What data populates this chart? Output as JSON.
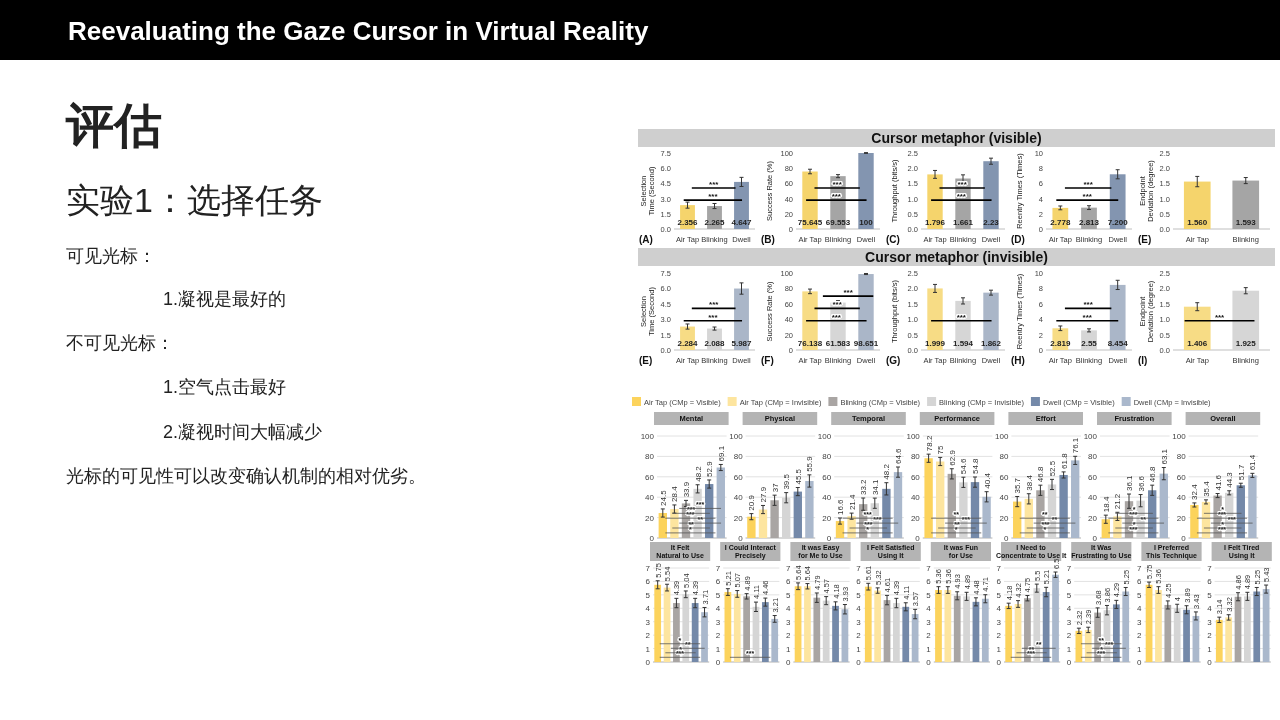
{
  "chart_data": [
    {
      "type": "other",
      "title": "Reevaluating the Gaze Cursor in Virtual Reality",
      "annotations": [
        "评估",
        "实验1：选择任务",
        "可见光标：",
        "1.凝视是最好的",
        "不可见光标：",
        "1.空气点击最好",
        "2.凝视时间大幅减少",
        "光标的可见性可以改变确认机制的相对优劣。"
      ]
    },
    {
      "type": "other",
      "title": "Cursor metaphor (visible)"
    },
    {
      "type": "bar",
      "subtitle": "(A)",
      "ylabel": "Selection Time (Second)",
      "categories": [
        "Air Tap",
        "Blinking",
        "Dwell"
      ],
      "values": [
        2.356,
        2.265,
        4.647
      ],
      "colors": [
        "#f5d46c",
        "#a5a5a5",
        "#8395b0"
      ],
      "errors": [
        0.3,
        0.25,
        0.45
      ],
      "value_labels": [
        "2.356",
        "2.265",
        "4.647"
      ],
      "ylim": [
        0,
        7.5
      ],
      "yticks": [
        {
          "value": 0,
          "label": "0.0"
        },
        1.5,
        {
          "value": 3,
          "label": "3.0"
        },
        4.5,
        {
          "value": 6,
          "label": "6.0"
        },
        7.5
      ],
      "annotations": [
        "***",
        "***"
      ]
    },
    {
      "type": "bar",
      "subtitle": "(B)",
      "ylabel": "Success Rate (%)",
      "categories": [
        "Air Tap",
        "Blinking",
        "Dwell"
      ],
      "values": [
        75.645,
        69.553,
        100
      ],
      "colors": [
        "#f5d46c",
        "#a5a5a5",
        "#8395b0"
      ],
      "errors": [
        3,
        2,
        0.5
      ],
      "value_labels": [
        "75.645",
        "69.553",
        "100"
      ],
      "ylim": [
        0,
        100
      ],
      "yticks": [
        0,
        20,
        40,
        60,
        80,
        100
      ],
      "annotations": [
        "***",
        "***"
      ]
    },
    {
      "type": "bar",
      "subtitle": "(C)",
      "ylabel": "Throughput (bits/s)",
      "categories": [
        "Air Tap",
        "Blinking",
        "Dwell"
      ],
      "values": [
        1.796,
        1.661,
        2.23
      ],
      "colors": [
        "#f5d46c",
        "#a5a5a5",
        "#8395b0"
      ],
      "errors": [
        0.13,
        0.12,
        0.1
      ],
      "value_labels": [
        "1.796",
        "1.661",
        "2.23"
      ],
      "ylim": [
        0,
        2.5
      ],
      "yticks": [
        {
          "value": 0,
          "label": "0.0"
        },
        0.5,
        {
          "value": 1,
          "label": "1.0"
        },
        1.5,
        {
          "value": 2,
          "label": "2.0"
        },
        2.5
      ],
      "annotations": [
        "***",
        "***"
      ]
    },
    {
      "type": "bar",
      "subtitle": "(D)",
      "ylabel": "Reentry Times (Times)",
      "categories": [
        "Air Tap",
        "Blinking",
        "Dwell"
      ],
      "values": [
        2.778,
        2.813,
        7.2
      ],
      "colors": [
        "#f5d46c",
        "#a5a5a5",
        "#8395b0"
      ],
      "errors": [
        0.25,
        0.25,
        0.6
      ],
      "value_labels": [
        "2.778",
        "2.813",
        "7.200"
      ],
      "ylim": [
        0,
        10
      ],
      "yticks": [
        0,
        2,
        4,
        6,
        8,
        10
      ],
      "annotations": [
        "***",
        "***"
      ]
    },
    {
      "type": "bar",
      "subtitle": "(E)",
      "ylabel": "Endpoint Deviation (degree)",
      "categories": [
        "Air Tap",
        "Blinking"
      ],
      "values": [
        1.56,
        1.593
      ],
      "colors": [
        "#f5d46c",
        "#a5a5a5"
      ],
      "errors": [
        0.17,
        0.1
      ],
      "value_labels": [
        "1.560",
        "1.593"
      ],
      "ylim": [
        0,
        2.5
      ],
      "yticks": [
        {
          "value": 0,
          "label": "0.0"
        },
        0.5,
        {
          "value": 1,
          "label": "1.0"
        },
        1.5,
        {
          "value": 2,
          "label": "2.0"
        },
        2.5
      ]
    },
    {
      "type": "other",
      "title": "Cursor metaphor (invisible)"
    },
    {
      "type": "bar",
      "subtitle": "(E)",
      "ylabel": "Selection Time (Second)",
      "categories": [
        "Air Tap",
        "Blinking",
        "Dwell"
      ],
      "values": [
        2.284,
        2.088,
        5.987
      ],
      "colors": [
        "#f7dc85",
        "#d6d6d6",
        "#aab6c8"
      ],
      "errors": [
        0.25,
        0.15,
        0.55
      ],
      "value_labels": [
        "2.284",
        "2.088",
        "5.987"
      ],
      "ylim": [
        0,
        7.5
      ],
      "yticks": [
        {
          "value": 0,
          "label": "0.0"
        },
        1.5,
        {
          "value": 3,
          "label": "3.0"
        },
        4.5,
        {
          "value": 6,
          "label": "6.0"
        },
        7.5
      ],
      "annotations": [
        "***",
        "***"
      ]
    },
    {
      "type": "bar",
      "subtitle": "(F)",
      "ylabel": "Success Rate (%)",
      "categories": [
        "Air Tap",
        "Blinking",
        "Dwell"
      ],
      "values": [
        76.138,
        61.583,
        98.651
      ],
      "colors": [
        "#f7dc85",
        "#d6d6d6",
        "#aab6c8"
      ],
      "errors": [
        3,
        2.5,
        0.7
      ],
      "value_labels": [
        "76.138",
        "61.583",
        "98.651"
      ],
      "ylim": [
        0,
        100
      ],
      "yticks": [
        0,
        20,
        40,
        60,
        80,
        100
      ],
      "annotations": [
        "***",
        "***",
        "***"
      ]
    },
    {
      "type": "bar",
      "subtitle": "(G)",
      "ylabel": "Throughput (bits/s)",
      "categories": [
        "Air Tap",
        "Blinking",
        "Dwell"
      ],
      "values": [
        1.999,
        1.594,
        1.862
      ],
      "colors": [
        "#f7dc85",
        "#d6d6d6",
        "#aab6c8"
      ],
      "errors": [
        0.13,
        0.1,
        0.08
      ],
      "value_labels": [
        "1.999",
        "1.594",
        "1.862"
      ],
      "ylim": [
        0,
        2.5
      ],
      "yticks": [
        {
          "value": 0,
          "label": "0.0"
        },
        0.5,
        {
          "value": 1,
          "label": "1.0"
        },
        1.5,
        {
          "value": 2,
          "label": "2.0"
        },
        2.5
      ],
      "annotations": [
        "***"
      ]
    },
    {
      "type": "bar",
      "subtitle": "(H)",
      "ylabel": "Reentry Times (Times)",
      "categories": [
        "Air Tap",
        "Blinking",
        "Dwell"
      ],
      "values": [
        2.819,
        2.55,
        8.454
      ],
      "colors": [
        "#f7dc85",
        "#d6d6d6",
        "#aab6c8"
      ],
      "errors": [
        0.3,
        0.2,
        0.6
      ],
      "value_labels": [
        "2.819",
        "2.55",
        "8.454"
      ],
      "ylim": [
        0,
        10
      ],
      "yticks": [
        0,
        2,
        4,
        6,
        8,
        10
      ],
      "annotations": [
        "***",
        "***"
      ]
    },
    {
      "type": "bar",
      "subtitle": "(I)",
      "ylabel": "Endpoint Deviation (degree)",
      "categories": [
        "Air Tap",
        "Blinking"
      ],
      "values": [
        1.406,
        1.925
      ],
      "colors": [
        "#f7dc85",
        "#d6d6d6"
      ],
      "errors": [
        0.13,
        0.1
      ],
      "value_labels": [
        "1.406",
        "1.925"
      ],
      "ylim": [
        0,
        2.5
      ],
      "yticks": [
        {
          "value": 0,
          "label": "0.0"
        },
        0.5,
        {
          "value": 1,
          "label": "1.0"
        },
        1.5,
        {
          "value": 2,
          "label": "2.0"
        },
        2.5
      ],
      "annotations": [
        "***"
      ]
    },
    {
      "type": "bar",
      "title": "Mental",
      "categories": [
        null
      ],
      "legend": "top",
      "grid": "y",
      "data_labels": true,
      "ylim": [
        0,
        100
      ],
      "yticks": [
        0,
        20,
        40,
        60,
        80,
        100
      ],
      "annotations": [
        "*",
        "**",
        "**",
        "***",
        "***",
        "***"
      ],
      "series": [
        {
          "name": "Air Tap (CMp = Visible)",
          "color": "#fcd35c",
          "values": [
            24.5
          ],
          "errors": [
            4
          ]
        },
        {
          "name": "Air Tap (CMp = Invisible)",
          "color": "#fde59f",
          "values": [
            28.4
          ],
          "errors": [
            4
          ]
        },
        {
          "name": "Blinking (CMp = Visible)",
          "color": "#a9a5a3",
          "values": [
            33.9
          ],
          "errors": [
            3
          ]
        },
        {
          "name": "Blinking (CMp = Invisible)",
          "color": "#d5d5d5",
          "values": [
            48.2
          ],
          "errors": [
            4
          ]
        },
        {
          "name": "Dwell (CMp = Visible)",
          "color": "#7489a9",
          "values": [
            52.9
          ],
          "errors": [
            4
          ]
        },
        {
          "name": "Dwell (CMp = Invisible)",
          "color": "#aab8cc",
          "values": [
            69.1
          ],
          "errors": [
            3
          ]
        }
      ]
    },
    {
      "type": "bar",
      "title": "Physical",
      "categories": [
        null
      ],
      "grid": "y",
      "data_labels": true,
      "ylim": [
        0,
        100
      ],
      "yticks": [
        0,
        20,
        40,
        60,
        80,
        100
      ],
      "series": [
        {
          "color": "#fcd35c",
          "values": [
            20.9
          ],
          "errors": [
            3
          ]
        },
        {
          "color": "#fde59f",
          "values": [
            27.9
          ],
          "errors": [
            4
          ]
        },
        {
          "color": "#a9a5a3",
          "values": [
            37
          ],
          "errors": [
            5
          ]
        },
        {
          "color": "#d5d5d5",
          "values": [
            39.5
          ],
          "errors": [
            5
          ]
        },
        {
          "color": "#7489a9",
          "values": [
            45.5
          ],
          "errors": [
            4
          ]
        },
        {
          "color": "#aab8cc",
          "values": [
            55.9
          ],
          "errors": [
            6
          ]
        }
      ]
    },
    {
      "type": "bar",
      "title": "Temporal",
      "categories": [
        null
      ],
      "grid": "y",
      "data_labels": true,
      "ylim": [
        0,
        100
      ],
      "yticks": [
        0,
        20,
        40,
        60,
        80,
        100
      ],
      "annotations": [
        "*",
        "***",
        "***",
        "***"
      ],
      "series": [
        {
          "color": "#fcd35c",
          "values": [
            16.6
          ],
          "errors": [
            3
          ]
        },
        {
          "color": "#fde59f",
          "values": [
            21.4
          ],
          "errors": [
            3
          ]
        },
        {
          "color": "#a9a5a3",
          "values": [
            33.2
          ],
          "errors": [
            6
          ]
        },
        {
          "color": "#d5d5d5",
          "values": [
            34.1
          ],
          "errors": [
            5
          ]
        },
        {
          "color": "#7489a9",
          "values": [
            48.2
          ],
          "errors": [
            6
          ]
        },
        {
          "color": "#aab8cc",
          "values": [
            64.6
          ],
          "errors": [
            5
          ]
        }
      ]
    },
    {
      "type": "bar",
      "title": "Performance",
      "categories": [
        null
      ],
      "grid": "y",
      "data_labels": true,
      "ylim": [
        0,
        100
      ],
      "yticks": [
        0,
        20,
        40,
        60,
        80,
        100
      ],
      "annotations": [
        "*",
        "**",
        "***",
        "**"
      ],
      "series": [
        {
          "color": "#fcd35c",
          "values": [
            78.2
          ],
          "errors": [
            4
          ]
        },
        {
          "color": "#fde59f",
          "values": [
            75
          ],
          "errors": [
            4
          ]
        },
        {
          "color": "#a9a5a3",
          "values": [
            62.9
          ],
          "errors": [
            5
          ]
        },
        {
          "color": "#d5d5d5",
          "values": [
            54.6
          ],
          "errors": [
            5
          ]
        },
        {
          "color": "#7489a9",
          "values": [
            54.8
          ],
          "errors": [
            5
          ]
        },
        {
          "color": "#aab8cc",
          "values": [
            40.4
          ],
          "errors": [
            5
          ]
        }
      ]
    },
    {
      "type": "bar",
      "title": "Effort",
      "categories": [
        null
      ],
      "grid": "y",
      "data_labels": true,
      "ylim": [
        0,
        100
      ],
      "yticks": [
        0,
        20,
        40,
        60,
        80,
        100
      ],
      "annotations": [
        "*",
        "***",
        "**",
        "**"
      ],
      "series": [
        {
          "color": "#fcd35c",
          "values": [
            35.7
          ],
          "errors": [
            5
          ]
        },
        {
          "color": "#fde59f",
          "values": [
            38.4
          ],
          "errors": [
            5
          ]
        },
        {
          "color": "#a9a5a3",
          "values": [
            46.8
          ],
          "errors": [
            5
          ]
        },
        {
          "color": "#d5d5d5",
          "values": [
            52.5
          ],
          "errors": [
            5
          ]
        },
        {
          "color": "#7489a9",
          "values": [
            61.8
          ],
          "errors": [
            3
          ]
        },
        {
          "color": "#aab8cc",
          "values": [
            76.1
          ],
          "errors": [
            4
          ]
        }
      ]
    },
    {
      "type": "bar",
      "title": "Frustration",
      "categories": [
        null
      ],
      "grid": "y",
      "data_labels": true,
      "ylim": [
        0,
        100
      ],
      "yticks": [
        0,
        20,
        40,
        60,
        80,
        100
      ],
      "annotations": [
        "***",
        "*",
        "**",
        "***",
        "*"
      ],
      "series": [
        {
          "color": "#fcd35c",
          "values": [
            18.4
          ],
          "errors": [
            4
          ]
        },
        {
          "color": "#fde59f",
          "values": [
            21.2
          ],
          "errors": [
            4
          ]
        },
        {
          "color": "#a9a5a3",
          "values": [
            36.1
          ],
          "errors": [
            7
          ]
        },
        {
          "color": "#d5d5d5",
          "values": [
            36.6
          ],
          "errors": [
            6
          ]
        },
        {
          "color": "#7489a9",
          "values": [
            46.8
          ],
          "errors": [
            5
          ]
        },
        {
          "color": "#aab8cc",
          "values": [
            63.1
          ],
          "errors": [
            6
          ]
        }
      ]
    },
    {
      "type": "bar",
      "title": "Overall",
      "categories": [
        null
      ],
      "grid": "y",
      "data_labels": true,
      "ylim": [
        0,
        100
      ],
      "yticks": [
        0,
        20,
        40,
        60,
        80,
        100
      ],
      "annotations": [
        "***",
        "*",
        "***",
        "***",
        "*"
      ],
      "series": [
        {
          "color": "#fcd35c",
          "values": [
            32.4
          ],
          "errors": [
            2
          ]
        },
        {
          "color": "#fde59f",
          "values": [
            35.4
          ],
          "errors": [
            2
          ]
        },
        {
          "color": "#a9a5a3",
          "values": [
            41.6
          ],
          "errors": [
            2
          ]
        },
        {
          "color": "#d5d5d5",
          "values": [
            44.3
          ],
          "errors": [
            2
          ]
        },
        {
          "color": "#7489a9",
          "values": [
            51.7
          ],
          "errors": [
            2
          ]
        },
        {
          "color": "#aab8cc",
          "values": [
            61.4
          ],
          "errors": [
            2
          ]
        }
      ]
    },
    {
      "type": "bar",
      "title": "It Felt Natural to Use",
      "categories": [
        null
      ],
      "grid": "y",
      "data_labels": true,
      "ylim": [
        0,
        7
      ],
      "yticks": [
        0,
        1,
        2,
        3,
        4,
        5,
        6,
        7
      ],
      "annotations": [
        "***",
        "*",
        "**",
        "*"
      ],
      "series": [
        {
          "color": "#fcd35c",
          "values": [
            5.75
          ],
          "errors": [
            0.3
          ]
        },
        {
          "color": "#fde59f",
          "values": [
            5.54
          ],
          "errors": [
            0.25
          ]
        },
        {
          "color": "#a9a5a3",
          "values": [
            4.39
          ],
          "errors": [
            0.35
          ]
        },
        {
          "color": "#d5d5d5",
          "values": [
            5.04
          ],
          "errors": [
            0.25
          ]
        },
        {
          "color": "#7489a9",
          "values": [
            4.39
          ],
          "errors": [
            0.35
          ]
        },
        {
          "color": "#aab8cc",
          "values": [
            3.71
          ],
          "errors": [
            0.35
          ]
        }
      ]
    },
    {
      "type": "bar",
      "title": "I Could Interact Precisely",
      "categories": [
        null
      ],
      "grid": "y",
      "data_labels": true,
      "ylim": [
        0,
        7
      ],
      "yticks": [
        0,
        1,
        2,
        3,
        4,
        5,
        6,
        7
      ],
      "annotations": [
        "***"
      ],
      "series": [
        {
          "color": "#fcd35c",
          "values": [
            5.21
          ],
          "errors": [
            0.25
          ]
        },
        {
          "color": "#fde59f",
          "values": [
            5.07
          ],
          "errors": [
            0.25
          ]
        },
        {
          "color": "#a9a5a3",
          "values": [
            4.89
          ],
          "errors": [
            0.2
          ]
        },
        {
          "color": "#d5d5d5",
          "values": [
            4.11
          ],
          "errors": [
            0.35
          ]
        },
        {
          "color": "#7489a9",
          "values": [
            4.46
          ],
          "errors": [
            0.3
          ]
        },
        {
          "color": "#aab8cc",
          "values": [
            3.21
          ],
          "errors": [
            0.25
          ]
        }
      ]
    },
    {
      "type": "bar",
      "title": "It was Easy for Me to Use",
      "categories": [
        null
      ],
      "grid": "y",
      "data_labels": true,
      "ylim": [
        0,
        7
      ],
      "yticks": [
        0,
        1,
        2,
        3,
        4,
        5,
        6,
        7
      ],
      "series": [
        {
          "color": "#fcd35c",
          "values": [
            5.64
          ],
          "errors": [
            0.25
          ]
        },
        {
          "color": "#fde59f",
          "values": [
            5.64
          ],
          "errors": [
            0.2
          ]
        },
        {
          "color": "#a9a5a3",
          "values": [
            4.79
          ],
          "errors": [
            0.35
          ]
        },
        {
          "color": "#d5d5d5",
          "values": [
            4.57
          ],
          "errors": [
            0.3
          ]
        },
        {
          "color": "#7489a9",
          "values": [
            4.18
          ],
          "errors": [
            0.3
          ]
        },
        {
          "color": "#aab8cc",
          "values": [
            3.93
          ],
          "errors": [
            0.35
          ]
        }
      ]
    },
    {
      "type": "bar",
      "title": "I Felt Satisfied Using It",
      "categories": [
        null
      ],
      "grid": "y",
      "data_labels": true,
      "ylim": [
        0,
        7
      ],
      "yticks": [
        0,
        1,
        2,
        3,
        4,
        5,
        6,
        7
      ],
      "series": [
        {
          "color": "#fcd35c",
          "values": [
            5.61
          ],
          "errors": [
            0.25
          ]
        },
        {
          "color": "#fde59f",
          "values": [
            5.32
          ],
          "errors": [
            0.2
          ]
        },
        {
          "color": "#a9a5a3",
          "values": [
            4.61
          ],
          "errors": [
            0.35
          ]
        },
        {
          "color": "#d5d5d5",
          "values": [
            4.39
          ],
          "errors": [
            0.35
          ]
        },
        {
          "color": "#7489a9",
          "values": [
            4.11
          ],
          "errors": [
            0.3
          ]
        },
        {
          "color": "#aab8cc",
          "values": [
            3.57
          ],
          "errors": [
            0.35
          ]
        }
      ]
    },
    {
      "type": "bar",
      "title": "It was Fun for Use",
      "categories": [
        null
      ],
      "grid": "y",
      "data_labels": true,
      "ylim": [
        0,
        7
      ],
      "yticks": [
        0,
        1,
        2,
        3,
        4,
        5,
        6,
        7
      ],
      "series": [
        {
          "color": "#fcd35c",
          "values": [
            5.36
          ],
          "errors": [
            0.25
          ]
        },
        {
          "color": "#fde59f",
          "values": [
            5.36
          ],
          "errors": [
            0.25
          ]
        },
        {
          "color": "#a9a5a3",
          "values": [
            4.93
          ],
          "errors": [
            0.3
          ]
        },
        {
          "color": "#d5d5d5",
          "values": [
            4.89
          ],
          "errors": [
            0.3
          ]
        },
        {
          "color": "#7489a9",
          "values": [
            4.48
          ],
          "errors": [
            0.3
          ]
        },
        {
          "color": "#aab8cc",
          "values": [
            4.71
          ],
          "errors": [
            0.3
          ]
        }
      ]
    },
    {
      "type": "bar",
      "title": "I Need to Concentrate to Use It",
      "categories": [
        null
      ],
      "grid": "y",
      "data_labels": true,
      "ylim": [
        0,
        7
      ],
      "yticks": [
        0,
        1,
        2,
        3,
        4,
        5,
        6,
        7
      ],
      "annotations": [
        "***",
        "**",
        "**"
      ],
      "series": [
        {
          "color": "#fcd35c",
          "values": [
            4.18
          ],
          "errors": [
            0.2
          ]
        },
        {
          "color": "#fde59f",
          "values": [
            4.32
          ],
          "errors": [
            0.25
          ]
        },
        {
          "color": "#a9a5a3",
          "values": [
            4.75
          ],
          "errors": [
            0.2
          ]
        },
        {
          "color": "#d5d5d5",
          "values": [
            5.5
          ],
          "errors": [
            0.3
          ]
        },
        {
          "color": "#7489a9",
          "values": [
            5.21
          ],
          "errors": [
            0.35
          ]
        },
        {
          "color": "#aab8cc",
          "values": [
            6.5
          ],
          "errors": [
            0.2
          ]
        }
      ]
    },
    {
      "type": "bar",
      "title": "It Was Frustrating to Use",
      "categories": [
        null
      ],
      "grid": "y",
      "data_labels": true,
      "ylim": [
        0,
        7
      ],
      "yticks": [
        0,
        1,
        2,
        3,
        4,
        5,
        6,
        7
      ],
      "annotations": [
        "***",
        "*",
        "***",
        "**"
      ],
      "series": [
        {
          "color": "#fcd35c",
          "values": [
            2.32
          ],
          "errors": [
            0.2
          ]
        },
        {
          "color": "#fde59f",
          "values": [
            2.39
          ],
          "errors": [
            0.2
          ]
        },
        {
          "color": "#a9a5a3",
          "values": [
            3.68
          ],
          "errors": [
            0.35
          ]
        },
        {
          "color": "#d5d5d5",
          "values": [
            3.86
          ],
          "errors": [
            0.35
          ]
        },
        {
          "color": "#7489a9",
          "values": [
            4.29
          ],
          "errors": [
            0.3
          ]
        },
        {
          "color": "#aab8cc",
          "values": [
            5.25
          ],
          "errors": [
            0.3
          ]
        }
      ]
    },
    {
      "type": "bar",
      "title": "I Preferred This Technique",
      "categories": [
        null
      ],
      "grid": "y",
      "data_labels": true,
      "ylim": [
        0,
        7
      ],
      "yticks": [
        0,
        1,
        2,
        3,
        4,
        5,
        6,
        7
      ],
      "series": [
        {
          "color": "#fcd35c",
          "values": [
            5.75
          ],
          "errors": [
            0.2
          ]
        },
        {
          "color": "#fde59f",
          "values": [
            5.36
          ],
          "errors": [
            0.25
          ]
        },
        {
          "color": "#a9a5a3",
          "values": [
            4.25
          ],
          "errors": [
            0.3
          ]
        },
        {
          "color": "#d5d5d5",
          "values": [
            4
          ],
          "errors": [
            0.3
          ]
        },
        {
          "color": "#7489a9",
          "values": [
            3.89
          ],
          "errors": [
            0.3
          ]
        },
        {
          "color": "#aab8cc",
          "values": [
            3.43
          ],
          "errors": [
            0.3
          ]
        }
      ]
    },
    {
      "type": "bar",
      "title": "I Felt Tired Using It",
      "categories": [
        null
      ],
      "grid": "y",
      "data_labels": true,
      "ylim": [
        0,
        7
      ],
      "yticks": [
        0,
        1,
        2,
        3,
        4,
        5,
        6,
        7
      ],
      "series": [
        {
          "color": "#fcd35c",
          "values": [
            3.14
          ],
          "errors": [
            0.2
          ]
        },
        {
          "color": "#fde59f",
          "values": [
            3.32
          ],
          "errors": [
            0.2
          ]
        },
        {
          "color": "#a9a5a3",
          "values": [
            4.86
          ],
          "errors": [
            0.3
          ]
        },
        {
          "color": "#d5d5d5",
          "values": [
            4.89
          ],
          "errors": [
            0.3
          ]
        },
        {
          "color": "#7489a9",
          "values": [
            5.25
          ],
          "errors": [
            0.3
          ]
        },
        {
          "color": "#aab8cc",
          "values": [
            5.43
          ],
          "errors": [
            0.3
          ]
        }
      ]
    }
  ]
}
